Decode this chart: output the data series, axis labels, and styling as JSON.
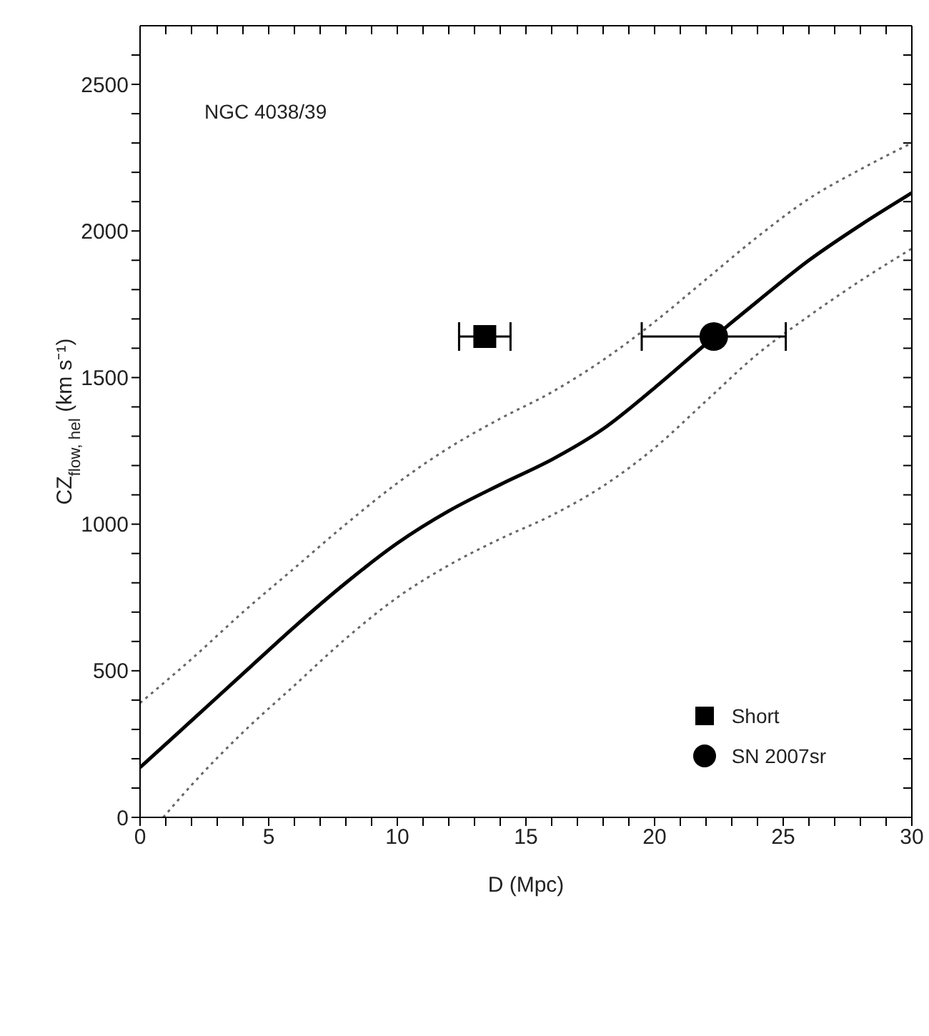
{
  "chart_data": {
    "type": "line",
    "xlabel": "D (Mpc)",
    "ylabel": "CZ$_{flow, hel}$ (km s⁻¹)",
    "annotations": [
      "NGC 4038/39"
    ],
    "xlim": [
      0,
      30
    ],
    "xticks": [
      0,
      {
        "value": 1,
        "label": null
      },
      {
        "value": 2,
        "label": null
      },
      {
        "value": 3,
        "label": null
      },
      {
        "value": 4,
        "label": null
      },
      5,
      {
        "value": 6,
        "label": null
      },
      {
        "value": 7,
        "label": null
      },
      {
        "value": 8,
        "label": null
      },
      {
        "value": 9,
        "label": null
      },
      10,
      {
        "value": 11,
        "label": null
      },
      {
        "value": 12,
        "label": null
      },
      {
        "value": 13,
        "label": null
      },
      {
        "value": 14,
        "label": null
      },
      15,
      {
        "value": 16,
        "label": null
      },
      {
        "value": 17,
        "label": null
      },
      {
        "value": 18,
        "label": null
      },
      {
        "value": 19,
        "label": null
      },
      20,
      {
        "value": 21,
        "label": null
      },
      {
        "value": 22,
        "label": null
      },
      {
        "value": 23,
        "label": null
      },
      {
        "value": 24,
        "label": null
      },
      25,
      {
        "value": 26,
        "label": null
      },
      {
        "value": 27,
        "label": null
      },
      {
        "value": 28,
        "label": null
      },
      {
        "value": 29,
        "label": null
      },
      30
    ],
    "ylim": [
      0,
      2700
    ],
    "yticks": [
      0,
      {
        "value": 100,
        "label": null
      },
      {
        "value": 200,
        "label": null
      },
      {
        "value": 300,
        "label": null
      },
      {
        "value": 400,
        "label": null
      },
      500,
      {
        "value": 600,
        "label": null
      },
      {
        "value": 700,
        "label": null
      },
      {
        "value": 800,
        "label": null
      },
      {
        "value": 900,
        "label": null
      },
      1000,
      {
        "value": 1100,
        "label": null
      },
      {
        "value": 1200,
        "label": null
      },
      {
        "value": 1300,
        "label": null
      },
      {
        "value": 1400,
        "label": null
      },
      1500,
      {
        "value": 1600,
        "label": null
      },
      {
        "value": 1700,
        "label": null
      },
      {
        "value": 1800,
        "label": null
      },
      {
        "value": 1900,
        "label": null
      },
      2000,
      {
        "value": 2100,
        "label": null
      },
      {
        "value": 2200,
        "label": null
      },
      {
        "value": 2300,
        "label": null
      },
      {
        "value": 2400,
        "label": null
      },
      2500,
      {
        "value": 2600,
        "label": null
      }
    ],
    "grid": false,
    "legend": "bottom right",
    "series": [
      {
        "color": "#000000",
        "line_style": "solid",
        "marker": "none",
        "x": [
          0,
          2,
          4,
          6,
          8,
          10,
          12,
          14,
          16,
          18,
          20,
          22,
          24,
          26,
          28,
          30
        ],
        "values": [
          170,
          330,
          490,
          650,
          800,
          935,
          1045,
          1135,
          1220,
          1325,
          1465,
          1615,
          1760,
          1900,
          2020,
          2130
        ]
      },
      {
        "color": "#666666",
        "line_style": "dotted",
        "marker": "none",
        "x": [
          0,
          2,
          4,
          6,
          8,
          10,
          12,
          14,
          16,
          18,
          20,
          22,
          24,
          26,
          28,
          30
        ],
        "values": [
          390,
          540,
          700,
          850,
          1000,
          1140,
          1260,
          1360,
          1450,
          1560,
          1690,
          1835,
          1980,
          2110,
          2210,
          2300
        ]
      },
      {
        "color": "#666666",
        "line_style": "dotted",
        "marker": "none",
        "x": [
          0.9,
          2,
          4,
          6,
          8,
          10,
          12,
          14,
          16,
          18,
          20,
          22,
          24,
          26,
          28,
          30
        ],
        "values": [
          0,
          110,
          290,
          450,
          610,
          750,
          860,
          950,
          1030,
          1130,
          1260,
          1420,
          1580,
          1710,
          1830,
          1940
        ]
      },
      {
        "type": "scatter",
        "name": "Short",
        "color": "#000000",
        "marker": "square",
        "x": [
          13.4
        ],
        "values": [
          1640
        ],
        "xerrors": [
          1.0
        ]
      },
      {
        "type": "scatter",
        "name": "SN 2007sr",
        "color": "#000000",
        "marker": "circle",
        "x": [
          22.3
        ],
        "values": [
          1640
        ],
        "xerrors": [
          2.8
        ]
      }
    ]
  }
}
